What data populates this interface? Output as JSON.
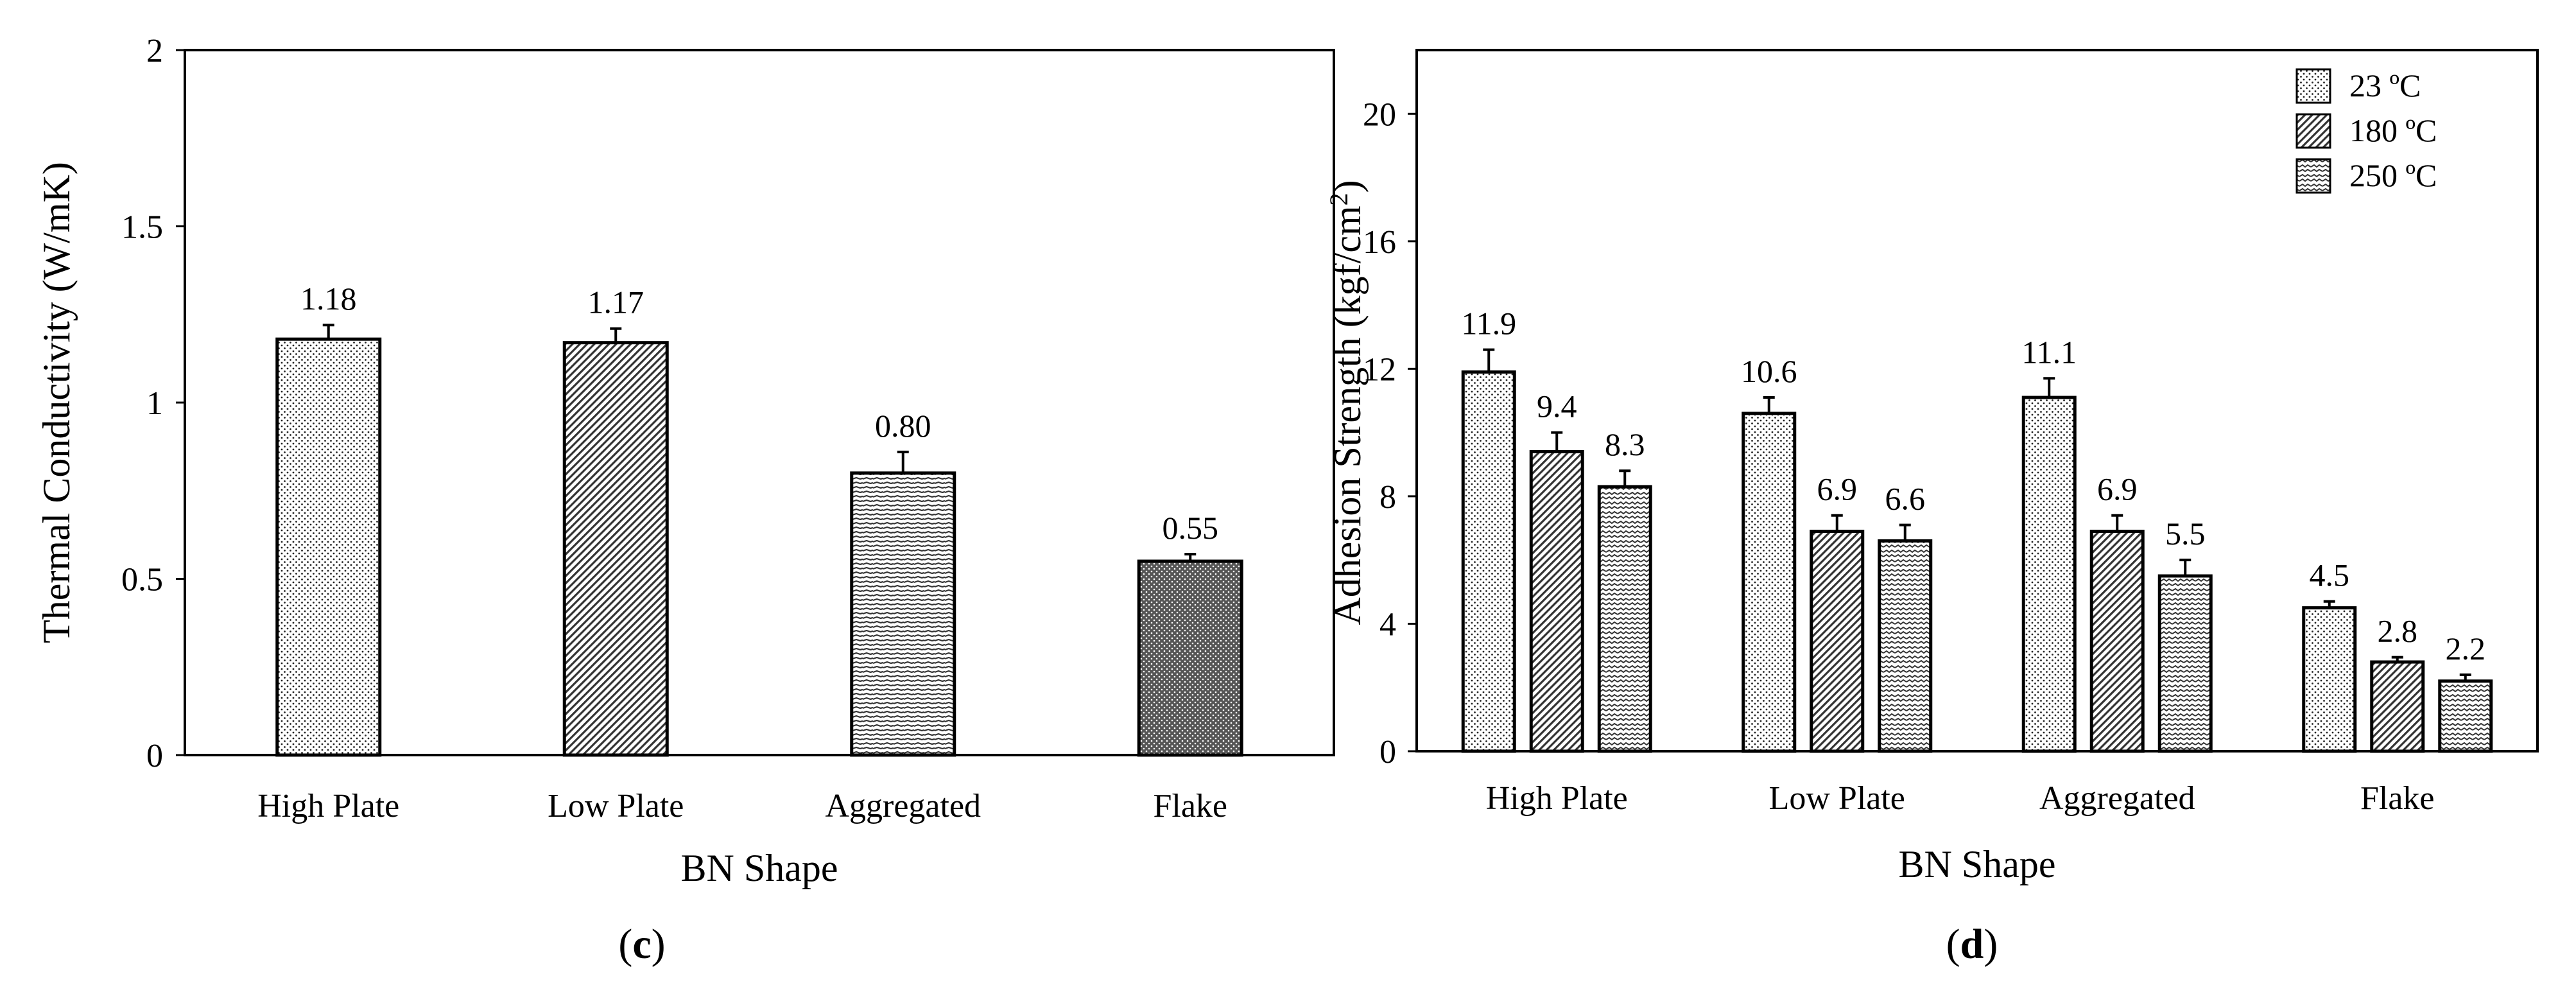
{
  "chart_data": [
    {
      "type": "bar",
      "panel": "(c)",
      "panel_letter": "c",
      "xlabel": "BN Shape",
      "ylabel": "Thermal Conductivity (W/mK)",
      "categories": [
        "High Plate",
        "Low Plate",
        "Aggregated",
        "Flake"
      ],
      "values": [
        1.18,
        1.17,
        0.8,
        0.55
      ],
      "value_labels": [
        "1.18",
        "1.17",
        "0.80",
        "0.55"
      ],
      "errors": [
        0.04,
        0.04,
        0.06,
        0.02
      ],
      "patterns": [
        "dots",
        "diag-dense",
        "hstripe",
        "dark-dots"
      ],
      "ylim": [
        0,
        2
      ],
      "yticks": [
        "0",
        "0.5",
        "1",
        "1.5",
        "2"
      ],
      "ytick_values": [
        0,
        0.5,
        1,
        1.5,
        2
      ],
      "grid": false,
      "legend": "none"
    },
    {
      "type": "bar",
      "panel": "(d)",
      "panel_letter": "d",
      "xlabel": "BN Shape",
      "ylabel": "Adhesion Strength (kgf/cm²)",
      "categories": [
        "High Plate",
        "Low Plate",
        "Aggregated",
        "Flake"
      ],
      "series": [
        {
          "name": "23 ºC",
          "values": [
            11.9,
            10.6,
            11.1,
            4.5
          ],
          "value_labels": [
            "11.9",
            "10.6",
            "11.1",
            "4.5"
          ],
          "errors": [
            0.7,
            0.5,
            0.6,
            0.2
          ],
          "pattern": "dots"
        },
        {
          "name": "180 ºC",
          "values": [
            9.4,
            6.9,
            6.9,
            2.8
          ],
          "value_labels": [
            "9.4",
            "6.9",
            "6.9",
            "2.8"
          ],
          "errors": [
            0.6,
            0.5,
            0.5,
            0.15
          ],
          "pattern": "diag-dense"
        },
        {
          "name": "250 ºC",
          "values": [
            8.3,
            6.6,
            5.5,
            2.2
          ],
          "value_labels": [
            "8.3",
            "6.6",
            "5.5",
            "2.2"
          ],
          "errors": [
            0.5,
            0.5,
            0.5,
            0.2
          ],
          "pattern": "hstripe-wavy"
        }
      ],
      "ylim": [
        0,
        22
      ],
      "yticks": [
        "0",
        "4",
        "8",
        "12",
        "16",
        "20"
      ],
      "ytick_values": [
        0,
        4,
        8,
        12,
        16,
        20
      ],
      "grid": false,
      "legend": "top-right"
    }
  ]
}
